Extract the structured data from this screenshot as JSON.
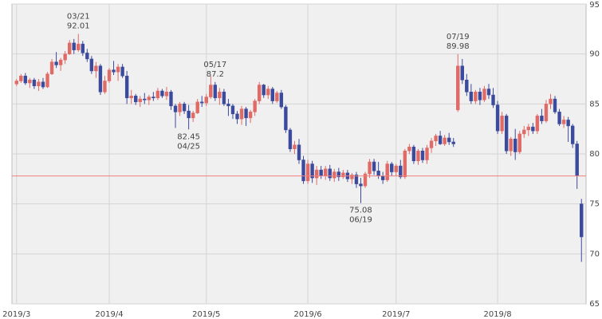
{
  "chart_data": {
    "type": "candlestick",
    "categories": [
      "2019/3",
      null,
      null,
      null,
      null,
      null,
      null,
      null,
      null,
      null,
      null,
      null,
      null,
      null,
      null,
      null,
      null,
      null,
      null,
      null,
      null,
      "2019/4",
      null,
      null,
      null,
      null,
      null,
      null,
      null,
      null,
      null,
      null,
      null,
      null,
      null,
      null,
      null,
      null,
      null,
      null,
      null,
      null,
      null,
      "2019/5",
      null,
      null,
      null,
      null,
      null,
      null,
      null,
      null,
      null,
      null,
      null,
      null,
      null,
      null,
      null,
      null,
      null,
      null,
      null,
      null,
      null,
      null,
      "2019/6",
      null,
      null,
      null,
      null,
      null,
      null,
      null,
      null,
      null,
      null,
      null,
      null,
      null,
      null,
      null,
      null,
      null,
      null,
      null,
      "2019/7",
      null,
      null,
      null,
      null,
      null,
      null,
      null,
      null,
      null,
      null,
      null,
      null,
      null,
      null,
      null,
      null,
      null,
      null,
      null,
      null,
      null,
      null,
      "2019/8",
      null,
      null,
      null,
      null,
      null,
      null,
      null,
      null,
      null,
      null,
      null,
      null,
      null,
      null,
      null,
      null,
      null,
      null,
      null
    ],
    "open": [
      87.0,
      87.3,
      87.8,
      87.1,
      87.4,
      86.8,
      87.2,
      86.7,
      88.0,
      89.2,
      88.9,
      89.4,
      90.0,
      91.1,
      90.4,
      91.0,
      90.1,
      89.5,
      88.3,
      88.8,
      86.2,
      87.3,
      88.4,
      88.2,
      88.7,
      87.8,
      85.6,
      85.8,
      85.2,
      85.5,
      85.4,
      85.7,
      85.6,
      86.3,
      85.8,
      86.2,
      84.8,
      84.2,
      85.0,
      84.3,
      83.6,
      84.1,
      85.2,
      85.1,
      85.7,
      86.9,
      85.6,
      86.2,
      85.0,
      84.8,
      84.0,
      83.5,
      84.5,
      83.6,
      84.2,
      85.3,
      86.9,
      85.9,
      86.5,
      85.3,
      86.1,
      84.7,
      82.4,
      80.5,
      80.9,
      79.4,
      77.3,
      79.0,
      77.6,
      78.4,
      77.8,
      78.5,
      77.6,
      78.2,
      77.7,
      78.1,
      77.5,
      77.9,
      77.0,
      76.8,
      78.0,
      79.2,
      78.3,
      77.8,
      77.4,
      79.0,
      78.2,
      78.8,
      77.7,
      80.3,
      80.7,
      79.3,
      80.3,
      79.4,
      80.6,
      81.3,
      81.8,
      81.0,
      81.6,
      81.2,
      84.4,
      88.8,
      87.4,
      86.2,
      85.3,
      86.2,
      85.4,
      86.5,
      85.9,
      84.9,
      82.3,
      83.8,
      80.3,
      81.5,
      80.2,
      82.0,
      82.4,
      82.7,
      82.3,
      83.8,
      83.3,
      85.0,
      85.5,
      84.2,
      83.0,
      83.4,
      82.8,
      81.0,
      75.0
    ],
    "high": [
      87.5,
      88.0,
      88.1,
      87.6,
      87.6,
      87.5,
      87.6,
      88.2,
      89.5,
      90.2,
      89.6,
      90.3,
      91.4,
      91.5,
      92.01,
      91.3,
      90.5,
      89.8,
      89.2,
      89.0,
      87.8,
      88.6,
      89.3,
      89.0,
      89.0,
      88.3,
      86.4,
      86.0,
      85.8,
      86.1,
      85.9,
      86.2,
      86.6,
      86.5,
      86.7,
      86.4,
      85.0,
      85.2,
      85.2,
      84.9,
      84.3,
      85.5,
      85.8,
      86.0,
      87.8,
      87.2,
      86.6,
      86.5,
      85.5,
      85.0,
      84.3,
      84.8,
      84.7,
      84.4,
      85.5,
      87.2,
      87.0,
      86.8,
      86.7,
      86.3,
      86.4,
      84.9,
      82.6,
      81.3,
      81.5,
      79.8,
      79.4,
      79.3,
      78.8,
      78.8,
      78.8,
      78.9,
      78.5,
      78.6,
      78.4,
      78.4,
      78.1,
      78.2,
      77.6,
      78.2,
      79.5,
      79.5,
      79.2,
      78.2,
      79.3,
      79.2,
      79.0,
      79.4,
      80.5,
      81.0,
      80.9,
      80.5,
      80.6,
      80.9,
      81.6,
      82.0,
      82.3,
      81.9,
      82.1,
      81.6,
      89.98,
      89.5,
      88.0,
      87.0,
      86.4,
      86.6,
      86.8,
      87.0,
      86.6,
      85.3,
      84.2,
      84.0,
      81.7,
      82.5,
      82.3,
      82.8,
      83.0,
      83.1,
      84.0,
      84.5,
      85.4,
      86.0,
      85.8,
      84.5,
      83.8,
      83.7,
      83.0,
      81.3,
      75.5
    ],
    "low": [
      86.8,
      87.1,
      86.9,
      86.6,
      86.5,
      86.3,
      86.5,
      86.6,
      87.9,
      88.6,
      88.3,
      89.0,
      89.9,
      90.0,
      90.2,
      89.8,
      89.2,
      88.0,
      87.6,
      85.9,
      86.0,
      87.1,
      87.9,
      87.3,
      87.6,
      85.0,
      85.0,
      84.9,
      84.7,
      85.0,
      84.9,
      85.3,
      85.4,
      85.6,
      85.4,
      84.4,
      82.6,
      83.8,
      84.0,
      82.45,
      83.2,
      84.0,
      84.7,
      84.8,
      85.5,
      85.3,
      84.9,
      84.8,
      83.8,
      83.5,
      83.0,
      82.9,
      82.8,
      83.1,
      83.8,
      85.0,
      85.6,
      85.5,
      85.0,
      85.1,
      84.5,
      82.1,
      80.2,
      80.0,
      79.0,
      77.0,
      77.0,
      77.1,
      76.9,
      77.5,
      77.4,
      77.3,
      77.2,
      77.3,
      77.5,
      77.2,
      77.0,
      76.6,
      75.08,
      76.6,
      77.6,
      77.9,
      77.5,
      77.0,
      77.2,
      77.8,
      77.8,
      77.5,
      77.5,
      80.0,
      79.0,
      78.9,
      79.1,
      79.0,
      80.1,
      80.8,
      80.9,
      80.8,
      80.9,
      80.7,
      84.2,
      87.0,
      85.8,
      85.0,
      85.0,
      84.9,
      85.2,
      85.5,
      84.6,
      82.0,
      82.0,
      80.0,
      79.8,
      79.4,
      80.0,
      81.6,
      81.8,
      82.0,
      82.0,
      83.0,
      83.1,
      84.5,
      84.0,
      82.8,
      82.6,
      81.2,
      80.6,
      76.5,
      69.2
    ],
    "close": [
      87.3,
      87.8,
      87.1,
      87.4,
      86.8,
      87.2,
      86.7,
      88.0,
      89.2,
      88.9,
      89.4,
      90.0,
      91.1,
      90.4,
      91.0,
      90.1,
      89.5,
      88.3,
      88.8,
      86.2,
      87.3,
      88.4,
      88.2,
      88.7,
      87.8,
      85.6,
      85.8,
      85.2,
      85.5,
      85.4,
      85.7,
      85.6,
      86.3,
      85.8,
      86.2,
      84.8,
      84.2,
      85.0,
      84.3,
      83.6,
      84.1,
      85.2,
      85.1,
      85.7,
      86.9,
      85.6,
      86.2,
      85.0,
      84.8,
      84.0,
      83.5,
      84.5,
      83.6,
      84.2,
      85.3,
      86.9,
      85.9,
      86.5,
      85.3,
      86.1,
      84.7,
      82.4,
      80.5,
      80.9,
      79.4,
      77.3,
      79.0,
      77.6,
      78.4,
      77.8,
      78.5,
      77.6,
      78.2,
      77.7,
      78.1,
      77.5,
      77.9,
      77.0,
      76.8,
      78.0,
      79.2,
      78.3,
      77.8,
      77.4,
      79.0,
      78.2,
      78.8,
      77.7,
      80.3,
      80.7,
      79.3,
      80.3,
      79.4,
      80.6,
      81.3,
      81.8,
      81.0,
      81.6,
      81.2,
      81.0,
      88.8,
      87.4,
      86.2,
      85.3,
      86.2,
      85.4,
      86.5,
      85.9,
      84.9,
      82.3,
      83.8,
      80.3,
      81.5,
      80.2,
      82.0,
      82.4,
      82.7,
      82.3,
      83.8,
      83.3,
      85.0,
      85.5,
      84.2,
      83.0,
      83.4,
      82.8,
      81.0,
      77.8,
      71.7
    ],
    "up_color": "#e06a66",
    "down_color": "#3b4a9c",
    "hline": 77.8,
    "hline_color": "#f08080",
    "annotations": [
      {
        "date": "03/21",
        "value": 92.01
      },
      {
        "date": "04/25",
        "value": 82.45
      },
      {
        "date": "05/17",
        "value": 87.2
      },
      {
        "date": "06/19",
        "value": 75.08
      },
      {
        "date": "07/19",
        "value": 89.98
      }
    ],
    "ylim": [
      65,
      95
    ],
    "yticks": [
      65,
      70,
      75,
      80,
      85,
      90,
      95
    ],
    "grid": true
  }
}
